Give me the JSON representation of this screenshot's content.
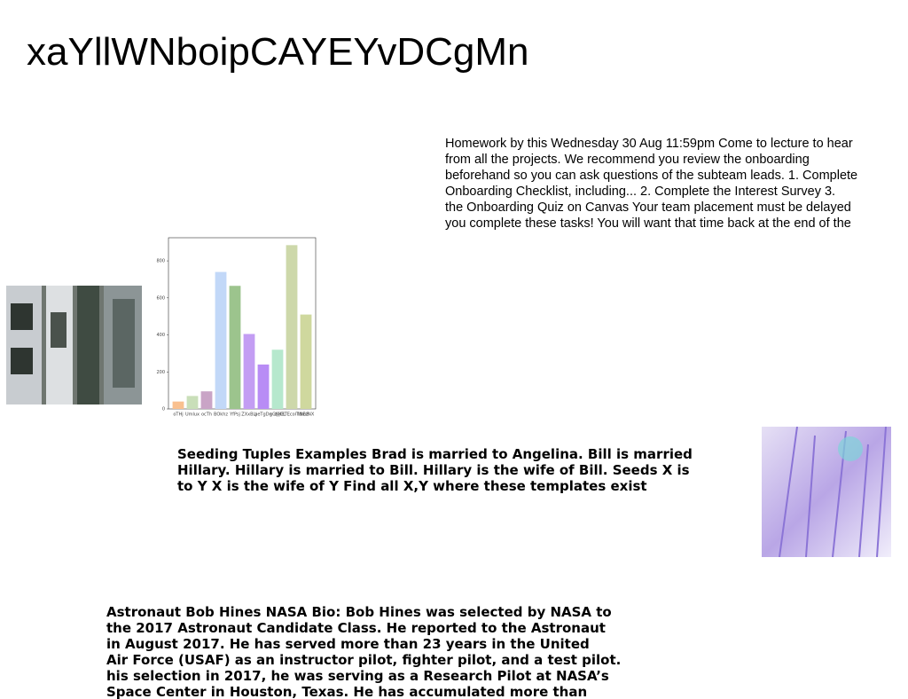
{
  "title": "xaYllWNboipCAYEYvDCgMn",
  "paragraphs": [
    {
      "lines": [
        "Homework by this Wednesday 30 Aug 11:59pm Come to lecture to hear",
        "from all the projects. We recommend you review the onboarding",
        "beforehand so you can ask questions of the subteam leads. 1. Complete",
        "Onboarding Checklist, including... 2. Complete the Interest Survey 3.",
        "the Onboarding Quiz on Canvas Your team placement must be delayed",
        "you complete these tasks! You will want that time back at the end of the"
      ]
    },
    {
      "lines": [
        "Seeding Tuples Examples Brad is married to Angelina. Bill is married",
        "Hillary. Hillary is married to Bill. Hillary is the wife of Bill. Seeds X is",
        "to Y X is the wife of Y Find all X,Y where these templates exist"
      ]
    },
    {
      "lines": [
        "Astronaut Bob Hines NASA Bio: Bob Hines was selected by NASA to",
        "the 2017 Astronaut Candidate Class. He reported to the Astronaut",
        "in August 2017. He has served more than 23 years in the United",
        "Air Force (USAF) as an instructor pilot, fighter pilot, and a test pilot.",
        "his selection in 2017, he was serving as a Research Pilot at NASA’s",
        "Space Center in Houston, Texas. He has accumulated more than"
      ]
    }
  ],
  "chart_data": {
    "type": "bar",
    "categories": [
      "oTHj",
      "Umlux",
      "ocTh",
      "BOkhz",
      "YfPsj",
      "ZXxBLj",
      "aeTgDn",
      "gGKjCL",
      "cjHBTEcolTdmB",
      "tNEzNX"
    ],
    "values": [
      40,
      70,
      95,
      740,
      665,
      405,
      240,
      320,
      885,
      510
    ],
    "colors": [
      "#f9c08f",
      "#c9dfb9",
      "#c9a4c6",
      "#c2d8f8",
      "#9cc48d",
      "#c39df3",
      "#b88cf5",
      "#b6e8cd",
      "#cdd8aa",
      "#cfd89e"
    ],
    "ylim": [
      0,
      925
    ],
    "yticks": [
      0,
      200,
      400,
      600,
      800
    ]
  }
}
